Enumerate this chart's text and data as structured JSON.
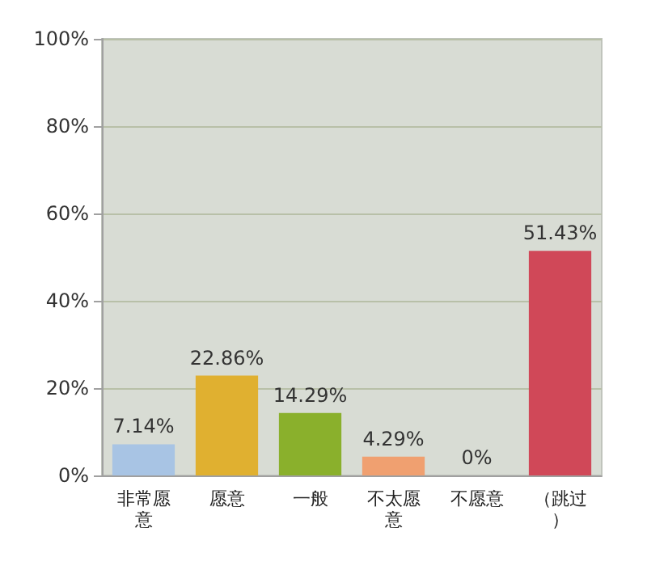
{
  "chart_data": {
    "type": "bar",
    "categories": [
      "非常愿意",
      "愿意",
      "一般",
      "不太愿意",
      "不愿意",
      "（跳过）"
    ],
    "values": [
      7.14,
      22.86,
      14.29,
      4.29,
      0,
      51.43
    ],
    "colors": [
      "#a8c4e4",
      "#e0b030",
      "#8ab02c",
      "#f0a070",
      "#40a8b0",
      "#d04858"
    ],
    "value_labels": [
      "7.14%",
      "22.86%",
      "14.29%",
      "4.29%",
      "0%",
      "51.43%"
    ],
    "ylim": [
      0,
      100
    ],
    "yticks": [
      {
        "value": 0,
        "label": "0%"
      },
      {
        "value": 20,
        "label": "20%"
      },
      {
        "value": 40,
        "label": "40%"
      },
      {
        "value": 60,
        "label": "60%"
      },
      {
        "value": 80,
        "label": "80%"
      },
      {
        "value": 100,
        "label": "100%"
      }
    ],
    "grid": "y"
  }
}
